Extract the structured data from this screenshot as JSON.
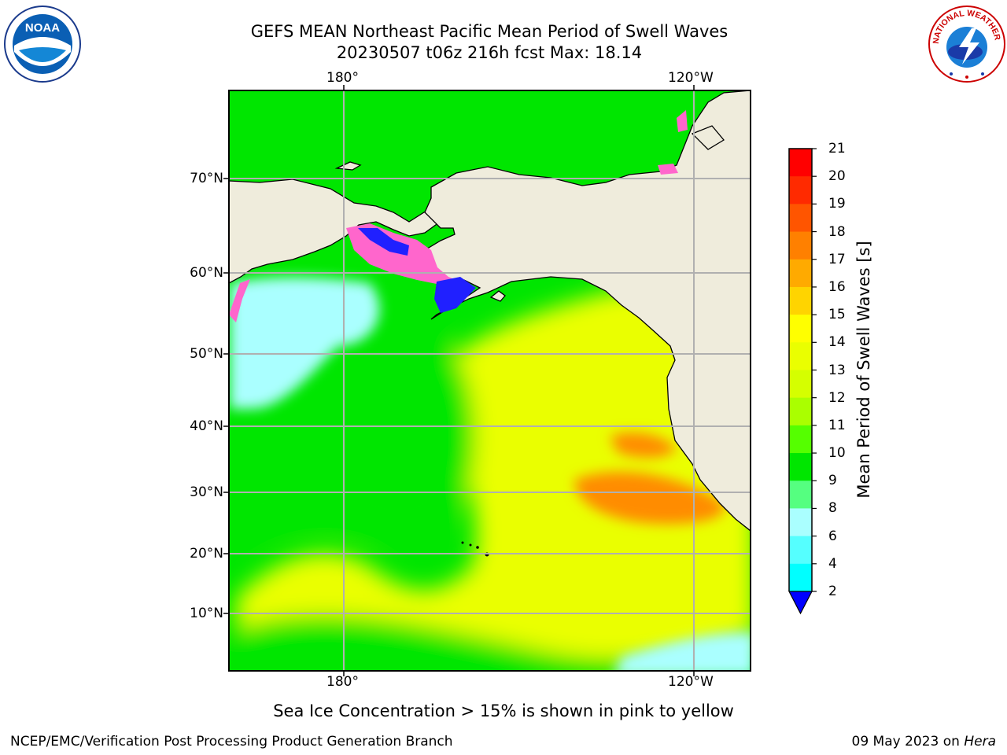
{
  "title": {
    "line1": "GEFS MEAN Northeast Pacific Mean Period of Swell Waves",
    "line2": "20230507 t06z 216h fcst   Max: 18.14"
  },
  "axes": {
    "lon_ticks": [
      "180°",
      "120°W"
    ],
    "lat_ticks": [
      "70°N",
      "60°N",
      "50°N",
      "40°N",
      "30°N",
      "20°N",
      "10°N"
    ]
  },
  "colorbar": {
    "label": "Mean Period of Swell Waves [s]",
    "ticks": [
      "21",
      "20",
      "19",
      "18",
      "17",
      "16",
      "15",
      "14",
      "13",
      "12",
      "11",
      "10",
      "9",
      "8",
      "6",
      "4",
      "2"
    ],
    "colors": [
      "#ff0000",
      "#ff2a00",
      "#ff5500",
      "#ff8000",
      "#ffaa00",
      "#ffd400",
      "#ffff00",
      "#eaff00",
      "#d5ff00",
      "#aaff00",
      "#55ff00",
      "#00e600",
      "#55ff80",
      "#aaffff",
      "#55ffff",
      "#00ffff",
      "#00e6ff",
      "#007fff",
      "#0000ff"
    ]
  },
  "logos": {
    "left": "NOAA",
    "right_text": "NATIONAL WEATHER SERVICE"
  },
  "note": "Sea Ice Concentration > 15% is shown in pink to yellow",
  "footer": {
    "left": "NCEP/EMC/Verification Post Processing Product Generation Branch",
    "right_prefix": "09 May 2023 on ",
    "right_host": "Hera"
  },
  "map_colors": {
    "land": "#efecdc",
    "ocean_low": "#aaffff",
    "ocean_mid": "#00e600",
    "ocean_high": "#eaff00",
    "ocean_peak": "#ff8c00",
    "ice_pink": "#ff66cc",
    "ice_blue": "#2020ff"
  }
}
